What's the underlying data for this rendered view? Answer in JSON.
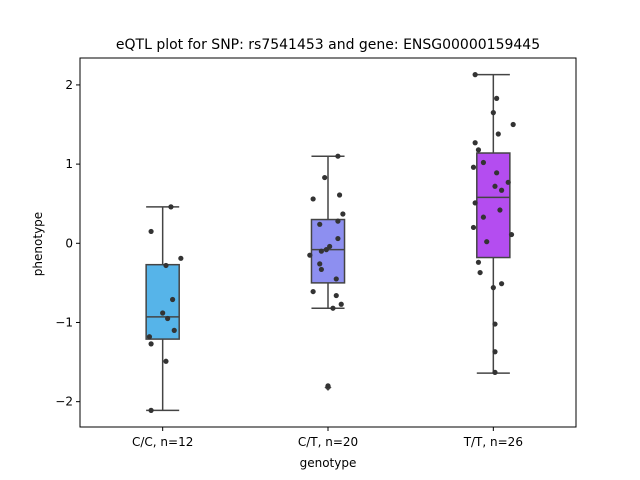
{
  "chart_data": {
    "type": "box",
    "title": "eQTL plot for SNP: rs7541453 and gene: ENSG00000159445",
    "xlabel": "genotype",
    "ylabel": "phenotype",
    "ylim": [
      -2.32,
      2.34
    ],
    "yticks": [
      -2,
      -1,
      0,
      1,
      2
    ],
    "categories": [
      "C/C, n=12",
      "C/T, n=20",
      "T/T, n=26"
    ],
    "grid": false,
    "legend": "none",
    "boxes": [
      {
        "category": "C/C, n=12",
        "color": "#56b4e9",
        "whisker_low": -2.11,
        "q1": -1.21,
        "median": -0.93,
        "q3": -0.27,
        "whisker_high": 0.46,
        "outliers": []
      },
      {
        "category": "C/T, n=20",
        "color": "#8d8ff0",
        "whisker_low": -0.82,
        "q1": -0.5,
        "median": -0.08,
        "q3": 0.3,
        "whisker_high": 1.1,
        "outliers": [
          -1.82
        ]
      },
      {
        "category": "T/T, n=26",
        "color": "#b44df0",
        "whisker_low": -1.64,
        "q1": -0.18,
        "median": 0.58,
        "q3": 1.14,
        "whisker_high": 2.13,
        "outliers": []
      }
    ],
    "points": [
      {
        "category": 0,
        "jitter": 0.05,
        "y": 0.46
      },
      {
        "category": 0,
        "jitter": -0.07,
        "y": 0.15
      },
      {
        "category": 0,
        "jitter": 0.11,
        "y": -0.19
      },
      {
        "category": 0,
        "jitter": 0.02,
        "y": -0.28
      },
      {
        "category": 0,
        "jitter": 0.06,
        "y": -0.71
      },
      {
        "category": 0,
        "jitter": 0.0,
        "y": -0.88
      },
      {
        "category": 0,
        "jitter": 0.03,
        "y": -0.95
      },
      {
        "category": 0,
        "jitter": 0.07,
        "y": -1.1
      },
      {
        "category": 0,
        "jitter": -0.08,
        "y": -1.18
      },
      {
        "category": 0,
        "jitter": -0.07,
        "y": -1.27
      },
      {
        "category": 0,
        "jitter": 0.02,
        "y": -1.49
      },
      {
        "category": 0,
        "jitter": -0.07,
        "y": -2.11
      },
      {
        "category": 1,
        "jitter": 0.06,
        "y": 1.1
      },
      {
        "category": 1,
        "jitter": -0.02,
        "y": 0.83
      },
      {
        "category": 1,
        "jitter": 0.07,
        "y": 0.61
      },
      {
        "category": 1,
        "jitter": -0.09,
        "y": 0.56
      },
      {
        "category": 1,
        "jitter": 0.09,
        "y": 0.37
      },
      {
        "category": 1,
        "jitter": 0.06,
        "y": 0.28
      },
      {
        "category": 1,
        "jitter": -0.05,
        "y": 0.24
      },
      {
        "category": 1,
        "jitter": 0.06,
        "y": 0.06
      },
      {
        "category": 1,
        "jitter": 0.01,
        "y": -0.04
      },
      {
        "category": 1,
        "jitter": -0.01,
        "y": -0.08
      },
      {
        "category": 1,
        "jitter": -0.04,
        "y": -0.1
      },
      {
        "category": 1,
        "jitter": -0.11,
        "y": -0.15
      },
      {
        "category": 1,
        "jitter": -0.05,
        "y": -0.26
      },
      {
        "category": 1,
        "jitter": -0.04,
        "y": -0.33
      },
      {
        "category": 1,
        "jitter": 0.05,
        "y": -0.45
      },
      {
        "category": 1,
        "jitter": -0.09,
        "y": -0.61
      },
      {
        "category": 1,
        "jitter": 0.05,
        "y": -0.66
      },
      {
        "category": 1,
        "jitter": 0.08,
        "y": -0.77
      },
      {
        "category": 1,
        "jitter": 0.03,
        "y": -0.82
      },
      {
        "category": 1,
        "jitter": 0.0,
        "y": -1.8
      },
      {
        "category": 2,
        "jitter": -0.11,
        "y": 2.13
      },
      {
        "category": 2,
        "jitter": 0.02,
        "y": 1.83
      },
      {
        "category": 2,
        "jitter": 0.0,
        "y": 1.65
      },
      {
        "category": 2,
        "jitter": 0.12,
        "y": 1.5
      },
      {
        "category": 2,
        "jitter": 0.03,
        "y": 1.38
      },
      {
        "category": 2,
        "jitter": -0.11,
        "y": 1.27
      },
      {
        "category": 2,
        "jitter": -0.09,
        "y": 1.18
      },
      {
        "category": 2,
        "jitter": -0.06,
        "y": 1.02
      },
      {
        "category": 2,
        "jitter": -0.12,
        "y": 0.96
      },
      {
        "category": 2,
        "jitter": 0.02,
        "y": 0.89
      },
      {
        "category": 2,
        "jitter": 0.09,
        "y": 0.77
      },
      {
        "category": 2,
        "jitter": 0.01,
        "y": 0.72
      },
      {
        "category": 2,
        "jitter": 0.05,
        "y": 0.67
      },
      {
        "category": 2,
        "jitter": -0.11,
        "y": 0.51
      },
      {
        "category": 2,
        "jitter": 0.04,
        "y": 0.42
      },
      {
        "category": 2,
        "jitter": -0.06,
        "y": 0.33
      },
      {
        "category": 2,
        "jitter": -0.12,
        "y": 0.2
      },
      {
        "category": 2,
        "jitter": 0.11,
        "y": 0.11
      },
      {
        "category": 2,
        "jitter": -0.04,
        "y": 0.02
      },
      {
        "category": 2,
        "jitter": -0.09,
        "y": -0.24
      },
      {
        "category": 2,
        "jitter": -0.08,
        "y": -0.37
      },
      {
        "category": 2,
        "jitter": 0.05,
        "y": -0.51
      },
      {
        "category": 2,
        "jitter": 0.0,
        "y": -0.56
      },
      {
        "category": 2,
        "jitter": 0.01,
        "y": -1.02
      },
      {
        "category": 2,
        "jitter": 0.01,
        "y": -1.37
      },
      {
        "category": 2,
        "jitter": 0.01,
        "y": -1.63
      }
    ]
  }
}
